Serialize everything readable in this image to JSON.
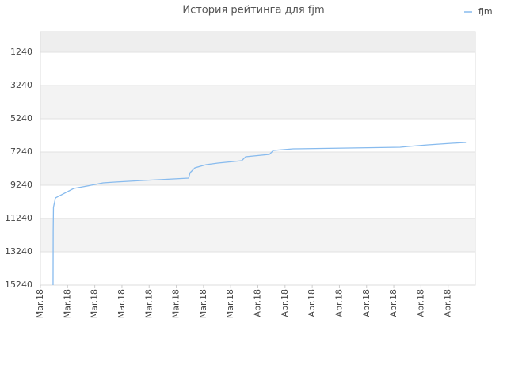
{
  "chart_data": {
    "type": "line",
    "title": "История рейтинга для fjm",
    "x": [
      0.93,
      0.94,
      0.96,
      1.11,
      2.45,
      3.44,
      4.61,
      5.48,
      7.52,
      8.69,
      10.9,
      11.02,
      11.37,
      12.19,
      13.06,
      14.81,
      15.1,
      16.85,
      17.14,
      18.6,
      22.68,
      26.47,
      27.06,
      28.51,
      30.26,
      31.31
    ],
    "series": [
      {
        "name": "fjm",
        "color": "#88bbee",
        "values": [
          15240,
          12000,
          10572,
          10000,
          9430,
          9287,
          9096,
          9049,
          8954,
          8906,
          8811,
          8477,
          8191,
          8001,
          7906,
          7763,
          7525,
          7382,
          7144,
          7049,
          7001,
          6953,
          6906,
          6810,
          6715,
          6668
        ]
      }
    ],
    "xlim": [
      0,
      32
    ],
    "xticks": [
      {
        "value": 0,
        "label": "Mar.18"
      },
      {
        "value": 2,
        "label": "Mar.18"
      },
      {
        "value": 4,
        "label": "Mar.18"
      },
      {
        "value": 6,
        "label": "Mar.18"
      },
      {
        "value": 8,
        "label": "Mar.18"
      },
      {
        "value": 10,
        "label": "Mar.18"
      },
      {
        "value": 12,
        "label": "Mar.18"
      },
      {
        "value": 14,
        "label": "Mar.18"
      },
      {
        "value": 16,
        "label": "Apr.18"
      },
      {
        "value": 18,
        "label": "Apr.18"
      },
      {
        "value": 20,
        "label": "Apr.18"
      },
      {
        "value": 22,
        "label": "Apr.18"
      },
      {
        "value": 24,
        "label": "Apr.18"
      },
      {
        "value": 26,
        "label": "Apr.18"
      },
      {
        "value": 28,
        "label": "Apr.18"
      },
      {
        "value": 30,
        "label": "Apr.18"
      }
    ],
    "ylim": [
      15240,
      0
    ],
    "yticks": [
      1240,
      3240,
      5240,
      7240,
      9240,
      11240,
      13240,
      15240
    ],
    "grid": true,
    "legend": "top-right"
  }
}
